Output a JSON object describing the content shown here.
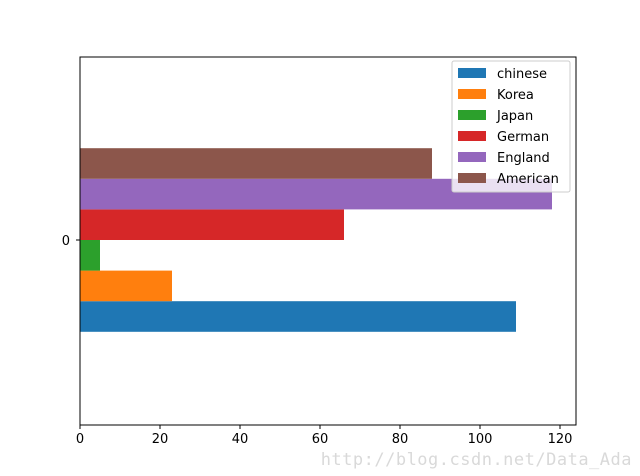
{
  "chart_data": {
    "type": "bar",
    "orientation": "horizontal",
    "categories": [
      "0"
    ],
    "series": [
      {
        "name": "chinese",
        "values": [
          109
        ],
        "color": "#1f77b4"
      },
      {
        "name": "Korea",
        "values": [
          23
        ],
        "color": "#ff7f0e"
      },
      {
        "name": "Japan",
        "values": [
          5
        ],
        "color": "#2ca02c"
      },
      {
        "name": "German",
        "values": [
          66
        ],
        "color": "#d62728"
      },
      {
        "name": "England",
        "values": [
          118
        ],
        "color": "#9467bd"
      },
      {
        "name": "American",
        "values": [
          88
        ],
        "color": "#8c564b"
      }
    ],
    "xlim": [
      0,
      124
    ],
    "xticks": [
      0,
      20,
      40,
      60,
      80,
      100,
      120
    ],
    "yticks": [
      "0"
    ],
    "title": "",
    "xlabel": "",
    "ylabel": "",
    "grid": false,
    "legend_position": "top-right"
  },
  "watermark": "http://blog.csdn.net/Data_Ada"
}
